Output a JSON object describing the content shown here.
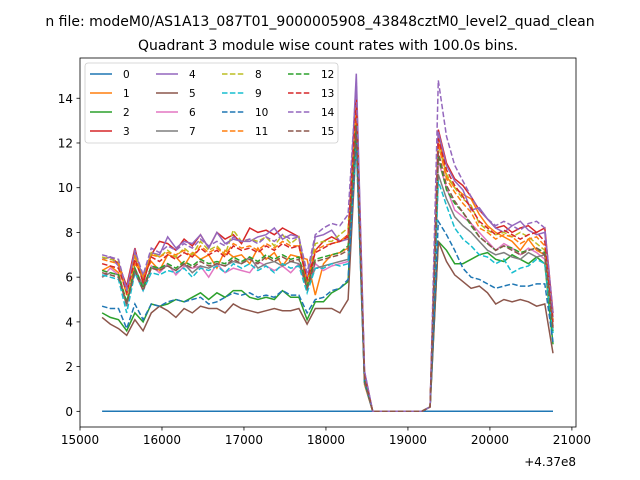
{
  "figure": {
    "suptitle": "n file: modeM0/AS1A13_087T01_9000005908_43848cztM0_level2_quad_clean",
    "title": "Quadrant 3 module wise count rates with 100.0s bins."
  },
  "chart_data": {
    "type": "line",
    "title": "Quadrant 3 module wise count rates with 100.0s bins.",
    "xlabel": "",
    "ylabel": "",
    "x_offset_label": "+4.37e8",
    "xlim": [
      15000,
      21050
    ],
    "ylim": [
      -0.7,
      15.8
    ],
    "xticks": [
      15000,
      16000,
      17000,
      18000,
      19000,
      20000,
      21000
    ],
    "xtick_labels": [
      "15000",
      "16000",
      "17000",
      "18000",
      "19000",
      "20000",
      "21000"
    ],
    "yticks": [
      0,
      2,
      4,
      6,
      8,
      10,
      12,
      14
    ],
    "ytick_labels": [
      "0",
      "2",
      "4",
      "6",
      "8",
      "10",
      "12",
      "14"
    ],
    "grid": false,
    "legend": {
      "placement": "top-left",
      "columns": 4
    },
    "x": [
      15270,
      15370,
      15470,
      15570,
      15670,
      15770,
      15870,
      15970,
      16070,
      16170,
      16270,
      16370,
      16470,
      16570,
      16670,
      16770,
      16870,
      16970,
      17070,
      17170,
      17270,
      17370,
      17470,
      17570,
      17670,
      17770,
      17870,
      17970,
      18070,
      18170,
      18270,
      18370,
      18470,
      18570,
      18670,
      18770,
      18870,
      18970,
      19070,
      19170,
      19270,
      19370,
      19470,
      19570,
      19670,
      19770,
      19870,
      19970,
      20070,
      20170,
      20270,
      20370,
      20470,
      20570,
      20670,
      20770
    ],
    "series": [
      {
        "name": "0",
        "color": "#1f77b4",
        "dashed": false,
        "values": [
          0,
          0,
          0,
          0,
          0,
          0,
          0,
          0,
          0,
          0,
          0,
          0,
          0,
          0,
          0,
          0,
          0,
          0,
          0,
          0,
          0,
          0,
          0,
          0,
          0,
          0,
          0,
          0,
          0,
          0,
          0,
          0,
          0,
          0,
          0,
          0,
          0,
          0,
          0,
          0,
          0,
          0,
          0,
          0,
          0,
          0,
          0,
          0,
          0,
          0,
          0,
          0,
          0,
          0,
          0,
          0
        ]
      },
      {
        "name": "1",
        "color": "#ff7f0e",
        "dashed": false,
        "values": [
          6.3,
          6.5,
          6.2,
          4.8,
          6.6,
          6.1,
          6.7,
          6.3,
          7.0,
          6.9,
          6.5,
          7.1,
          6.8,
          7.0,
          6.4,
          7.2,
          6.9,
          7.0,
          6.6,
          7.3,
          6.8,
          7.1,
          6.5,
          7.0,
          6.9,
          6.8,
          5.2,
          6.6,
          7.0,
          7.1,
          7.3,
          13.0,
          1.2,
          0,
          0,
          0,
          0,
          0,
          0,
          0,
          0.2,
          12.4,
          10.5,
          10.0,
          9.7,
          9.5,
          8.8,
          8.3,
          8.0,
          7.8,
          7.6,
          7.2,
          7.7,
          7.2,
          7.0,
          3.8
        ]
      },
      {
        "name": "2",
        "color": "#2ca02c",
        "dashed": false,
        "values": [
          4.4,
          4.2,
          4.1,
          3.6,
          4.4,
          4.0,
          4.8,
          4.7,
          4.8,
          5.0,
          4.9,
          5.1,
          5.3,
          5.0,
          5.3,
          5.1,
          5.4,
          5.4,
          5.1,
          5.0,
          5.1,
          5.0,
          5.4,
          5.1,
          5.1,
          4.1,
          4.9,
          4.9,
          5.3,
          5.5,
          5.8,
          13.2,
          1.4,
          0,
          0,
          0,
          0,
          0,
          0,
          0,
          0.2,
          7.6,
          7.2,
          6.6,
          6.6,
          6.8,
          7.0,
          7.1,
          6.8,
          6.7,
          7.0,
          6.8,
          6.6,
          6.9,
          6.6,
          3.0
        ]
      },
      {
        "name": "3",
        "color": "#d62728",
        "dashed": false,
        "values": [
          6.8,
          6.9,
          6.6,
          5.6,
          7.3,
          5.7,
          7.0,
          7.6,
          7.5,
          7.2,
          7.7,
          7.4,
          7.9,
          7.3,
          8.0,
          7.7,
          7.9,
          7.5,
          8.2,
          8.0,
          8.1,
          7.9,
          8.2,
          8.0,
          7.8,
          5.4,
          7.2,
          7.6,
          7.8,
          7.6,
          7.9,
          14.2,
          1.7,
          0,
          0,
          0,
          0,
          0,
          0,
          0,
          0.2,
          12.6,
          11.1,
          10.4,
          10.1,
          9.6,
          9.0,
          8.6,
          8.2,
          8.3,
          8.0,
          8.2,
          8.3,
          8.0,
          8.2,
          4.4
        ]
      },
      {
        "name": "4",
        "color": "#9467bd",
        "dashed": false,
        "values": [
          6.8,
          6.9,
          6.5,
          5.5,
          7.1,
          6.0,
          7.1,
          7.0,
          7.8,
          7.3,
          7.6,
          7.5,
          7.9,
          7.3,
          8.0,
          7.5,
          7.7,
          7.6,
          7.6,
          7.8,
          7.9,
          8.2,
          7.7,
          7.9,
          7.8,
          5.9,
          7.8,
          7.9,
          8.1,
          7.6,
          7.7,
          15.1,
          1.8,
          0,
          0,
          0,
          0,
          0,
          0,
          0,
          0.2,
          12.5,
          11.0,
          10.3,
          9.9,
          9.0,
          9.1,
          8.6,
          8.2,
          8.0,
          8.3,
          8.5,
          8.1,
          7.9,
          8.0,
          4.2
        ]
      },
      {
        "name": "5",
        "color": "#8c564b",
        "dashed": false,
        "values": [
          4.2,
          3.9,
          3.7,
          3.4,
          4.1,
          3.6,
          4.4,
          4.7,
          4.5,
          4.2,
          4.6,
          4.4,
          4.7,
          4.6,
          4.6,
          4.4,
          4.8,
          4.6,
          4.5,
          4.4,
          4.5,
          4.6,
          4.5,
          4.5,
          4.6,
          3.9,
          4.6,
          4.6,
          4.6,
          4.4,
          5.0,
          12.1,
          1.3,
          0,
          0,
          0,
          0,
          0,
          0,
          0,
          0.2,
          7.6,
          6.7,
          6.1,
          5.8,
          5.5,
          5.6,
          5.3,
          4.8,
          5.0,
          4.9,
          5.0,
          4.9,
          4.7,
          4.8,
          2.6
        ]
      },
      {
        "name": "6",
        "color": "#e377c2",
        "dashed": false,
        "values": [
          6.0,
          6.4,
          6.1,
          4.8,
          6.2,
          5.4,
          6.5,
          6.2,
          6.6,
          6.1,
          6.5,
          6.4,
          6.5,
          6.0,
          6.6,
          6.2,
          6.4,
          6.3,
          6.2,
          6.7,
          6.5,
          6.3,
          6.5,
          6.2,
          6.6,
          5.5,
          6.6,
          6.3,
          6.5,
          6.6,
          6.7,
          13.5,
          1.4,
          0,
          0,
          0,
          0,
          0,
          0,
          0,
          0.2,
          11.2,
          10.0,
          9.0,
          8.7,
          8.4,
          8.0,
          7.6,
          7.2,
          7.5,
          7.3,
          7.0,
          7.3,
          7.1,
          6.8,
          3.8
        ]
      },
      {
        "name": "7",
        "color": "#7f7f7f",
        "dashed": false,
        "values": [
          6.0,
          6.2,
          6.1,
          4.7,
          6.4,
          5.6,
          6.4,
          6.4,
          6.5,
          6.3,
          6.6,
          6.2,
          6.5,
          6.4,
          6.6,
          6.5,
          6.7,
          6.6,
          6.9,
          6.4,
          6.6,
          6.7,
          6.5,
          6.7,
          6.6,
          5.5,
          6.4,
          6.5,
          6.6,
          6.7,
          6.8,
          13.4,
          1.5,
          0,
          0,
          0,
          0,
          0,
          0,
          0,
          0.2,
          10.6,
          9.5,
          8.7,
          8.3,
          8.0,
          7.6,
          7.2,
          7.0,
          7.1,
          6.9,
          6.8,
          7.1,
          6.9,
          7.0,
          3.7
        ]
      },
      {
        "name": "8",
        "color": "#bcbd22",
        "dashed": true,
        "values": [
          6.9,
          6.8,
          6.7,
          5.2,
          7.0,
          5.9,
          7.1,
          6.9,
          7.2,
          6.9,
          7.3,
          7.0,
          7.6,
          7.2,
          7.4,
          7.0,
          8.1,
          7.6,
          7.7,
          7.6,
          7.8,
          7.4,
          7.9,
          7.5,
          7.8,
          5.7,
          7.5,
          7.6,
          7.6,
          7.9,
          8.2,
          13.9,
          1.6,
          0,
          0,
          0,
          0,
          0,
          0,
          0,
          0.2,
          11.9,
          10.6,
          10.0,
          9.5,
          9.2,
          8.4,
          8.1,
          7.9,
          8.0,
          7.8,
          8.0,
          7.8,
          7.5,
          7.2,
          3.9
        ]
      },
      {
        "name": "9",
        "color": "#17becf",
        "dashed": true,
        "values": [
          6.1,
          6.0,
          5.9,
          4.4,
          6.2,
          5.4,
          6.2,
          6.1,
          6.3,
          6.2,
          6.4,
          6.0,
          6.4,
          6.3,
          6.5,
          6.2,
          6.6,
          6.4,
          6.6,
          6.3,
          6.5,
          6.2,
          6.6,
          6.4,
          6.5,
          5.3,
          6.4,
          6.4,
          6.6,
          6.5,
          6.6,
          11.9,
          1.3,
          0,
          0,
          0,
          0,
          0,
          0,
          0,
          0.2,
          10.3,
          9.2,
          8.2,
          7.7,
          7.4,
          7.0,
          6.9,
          6.6,
          6.8,
          6.2,
          6.4,
          6.5,
          6.8,
          6.6,
          3.5
        ]
      },
      {
        "name": "10",
        "color": "#1f77b4",
        "dashed": true,
        "values": [
          4.7,
          4.6,
          4.6,
          3.7,
          4.8,
          4.1,
          4.8,
          4.7,
          4.9,
          5.0,
          4.9,
          5.0,
          5.1,
          4.8,
          4.9,
          5.1,
          5.3,
          5.2,
          5.3,
          5.1,
          5.2,
          5.1,
          5.4,
          5.2,
          5.2,
          4.4,
          5.0,
          5.1,
          5.4,
          5.5,
          5.9,
          12.4,
          1.3,
          0,
          0,
          0,
          0,
          0,
          0,
          0,
          0.2,
          8.5,
          7.9,
          7.2,
          6.4,
          6.0,
          5.9,
          5.7,
          5.5,
          5.6,
          5.7,
          5.6,
          5.6,
          5.7,
          5.7,
          3.1
        ]
      },
      {
        "name": "11",
        "color": "#ff7f0e",
        "dashed": true,
        "values": [
          6.8,
          6.7,
          6.6,
          5.2,
          6.9,
          6.0,
          7.0,
          6.9,
          7.1,
          7.0,
          7.2,
          6.9,
          7.4,
          7.1,
          7.3,
          7.0,
          7.5,
          7.3,
          7.4,
          7.2,
          7.5,
          7.3,
          7.6,
          7.4,
          7.4,
          5.8,
          7.2,
          7.4,
          7.5,
          7.6,
          7.9,
          13.6,
          1.5,
          0,
          0,
          0,
          0,
          0,
          0,
          0,
          0.2,
          12.0,
          10.4,
          9.8,
          9.3,
          8.9,
          8.2,
          8.0,
          7.7,
          7.9,
          7.8,
          7.5,
          7.7,
          7.8,
          7.4,
          4.1
        ]
      },
      {
        "name": "12",
        "color": "#2ca02c",
        "dashed": true,
        "values": [
          6.3,
          6.2,
          6.1,
          4.9,
          6.4,
          5.5,
          6.5,
          6.4,
          6.6,
          6.4,
          6.7,
          6.5,
          6.8,
          6.6,
          6.7,
          6.6,
          6.9,
          6.7,
          6.9,
          6.7,
          7.0,
          6.8,
          7.0,
          6.8,
          6.9,
          5.6,
          6.8,
          6.9,
          7.0,
          7.1,
          7.4,
          12.8,
          1.4,
          0,
          0,
          0,
          0,
          0,
          0,
          0,
          0.2,
          11.4,
          9.9,
          9.3,
          8.9,
          8.3,
          7.8,
          7.5,
          7.2,
          7.4,
          7.3,
          7.1,
          7.2,
          7.3,
          7.1,
          3.6
        ]
      },
      {
        "name": "13",
        "color": "#d62728",
        "dashed": true,
        "values": [
          6.6,
          6.5,
          6.4,
          5.3,
          6.8,
          5.8,
          6.9,
          6.7,
          7.0,
          6.8,
          7.1,
          6.9,
          7.3,
          7.0,
          7.2,
          6.9,
          7.4,
          7.2,
          7.3,
          7.1,
          7.4,
          7.2,
          7.5,
          7.3,
          7.4,
          5.9,
          7.1,
          7.3,
          7.5,
          7.6,
          7.8,
          14.0,
          1.6,
          0,
          0,
          0,
          0,
          0,
          0,
          0,
          0.2,
          12.2,
          10.8,
          10.1,
          9.6,
          9.1,
          8.5,
          8.2,
          7.9,
          8.1,
          7.9,
          7.7,
          7.9,
          8.0,
          7.6,
          4.0
        ]
      },
      {
        "name": "14",
        "color": "#9467bd",
        "dashed": true,
        "values": [
          7.0,
          6.9,
          6.8,
          5.4,
          7.2,
          6.1,
          7.3,
          7.1,
          7.4,
          7.2,
          7.5,
          7.3,
          7.7,
          7.4,
          7.6,
          7.4,
          7.8,
          7.6,
          7.7,
          7.5,
          7.8,
          7.6,
          7.9,
          7.7,
          7.8,
          6.2,
          7.9,
          8.2,
          8.4,
          8.3,
          8.8,
          14.7,
          1.8,
          0,
          0,
          0,
          0,
          0,
          0,
          0,
          0.2,
          14.8,
          12.3,
          11.0,
          10.3,
          9.6,
          9.0,
          8.6,
          8.3,
          8.5,
          8.3,
          8.1,
          8.4,
          8.5,
          8.2,
          4.4
        ]
      },
      {
        "name": "15",
        "color": "#8c564b",
        "dashed": true,
        "values": [
          6.2,
          6.1,
          6.0,
          4.8,
          6.3,
          5.4,
          6.4,
          6.3,
          6.5,
          6.3,
          6.6,
          6.4,
          6.7,
          6.5,
          6.6,
          6.5,
          6.8,
          6.6,
          6.8,
          6.6,
          6.9,
          6.7,
          6.9,
          6.7,
          6.8,
          5.5,
          6.7,
          6.8,
          6.9,
          7.0,
          7.2,
          12.7,
          1.4,
          0,
          0,
          0,
          0,
          0,
          0,
          0,
          0.2,
          11.6,
          10.1,
          9.4,
          8.9,
          8.4,
          7.8,
          7.5,
          7.2,
          7.4,
          7.2,
          7.0,
          7.2,
          7.3,
          7.0,
          3.7
        ]
      }
    ]
  }
}
